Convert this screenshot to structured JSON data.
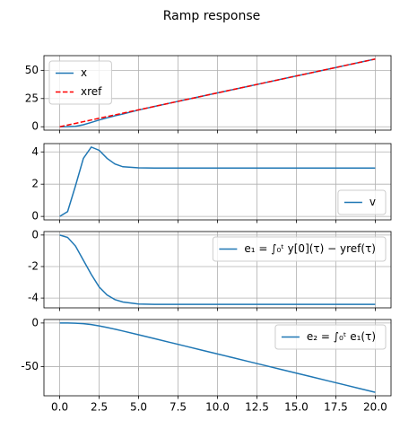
{
  "title": "Ramp response",
  "chart_data": [
    {
      "type": "line",
      "legend": "upper left",
      "grid": true,
      "ylim": [
        -3,
        63
      ],
      "yticks": [
        0,
        25,
        50
      ],
      "series": [
        {
          "name": "x",
          "color": "#1f77b4",
          "style": "solid",
          "x": [
            0,
            0.5,
            1,
            1.5,
            2,
            2.5,
            3,
            3.5,
            4,
            5,
            6,
            7,
            8,
            9,
            10,
            11,
            12,
            13,
            14,
            15,
            16,
            17,
            18,
            19,
            20
          ],
          "values": [
            0,
            0.05,
            0.4,
            1.8,
            3.8,
            6.0,
            7.9,
            9.7,
            11.3,
            14.85,
            18,
            21,
            24,
            27,
            30,
            33,
            36,
            39,
            42,
            45,
            48,
            51,
            54,
            57,
            60
          ]
        },
        {
          "name": "xref",
          "color": "#ff0000",
          "style": "dashed",
          "x": [
            0,
            0.5,
            1,
            1.5,
            2,
            2.5,
            3,
            3.5,
            4,
            5,
            6,
            7,
            8,
            9,
            10,
            11,
            12,
            13,
            14,
            15,
            16,
            17,
            18,
            19,
            20
          ],
          "values": [
            0,
            1.5,
            3,
            4.5,
            6,
            7.5,
            9,
            10.5,
            12,
            15,
            18,
            21,
            24,
            27,
            30,
            33,
            36,
            39,
            42,
            45,
            48,
            51,
            54,
            57,
            60
          ]
        }
      ]
    },
    {
      "type": "line",
      "legend": "lower right",
      "grid": true,
      "ylim": [
        -0.215,
        4.515
      ],
      "yticks": [
        0,
        2,
        4
      ],
      "series": [
        {
          "name": "v",
          "color": "#1f77b4",
          "style": "solid",
          "x": [
            0,
            0.5,
            1,
            1.5,
            2,
            2.5,
            3,
            3.5,
            4,
            5,
            6,
            7,
            8,
            9,
            10,
            11,
            12,
            13,
            14,
            15,
            16,
            17,
            18,
            19,
            20
          ],
          "values": [
            0,
            0.3,
            1.9,
            3.6,
            4.3,
            4.1,
            3.6,
            3.25,
            3.08,
            3.01,
            3,
            3,
            3,
            3,
            3,
            3,
            3,
            3,
            3,
            3,
            3,
            3,
            3,
            3,
            3
          ]
        }
      ]
    },
    {
      "type": "line",
      "legend": "upper right",
      "grid": true,
      "ylim": [
        -4.62,
        0.22
      ],
      "yticks": [
        -4,
        -2,
        0
      ],
      "series": [
        {
          "name": "e₁ = ∫₀ᵗ y[0](τ) − yref(τ)",
          "color": "#1f77b4",
          "style": "solid",
          "x": [
            0,
            0.5,
            1,
            1.5,
            2,
            2.5,
            3,
            3.5,
            4,
            5,
            6,
            7,
            8,
            9,
            10,
            11,
            12,
            13,
            14,
            15,
            16,
            17,
            18,
            19,
            20
          ],
          "values": [
            0,
            -0.15,
            -0.7,
            -1.6,
            -2.5,
            -3.3,
            -3.8,
            -4.1,
            -4.25,
            -4.38,
            -4.4,
            -4.4,
            -4.4,
            -4.4,
            -4.4,
            -4.4,
            -4.4,
            -4.4,
            -4.4,
            -4.4,
            -4.4,
            -4.4,
            -4.4,
            -4.4,
            -4.4
          ]
        }
      ]
    },
    {
      "type": "line",
      "legend": "upper right",
      "grid": true,
      "ylim": [
        -83.5,
        4
      ],
      "yticks": [
        -50,
        0
      ],
      "xlim": [
        -1,
        21
      ],
      "xticks": [
        {
          "value": 0,
          "label": "0.0"
        },
        2.5,
        {
          "value": 5,
          "label": "5.0"
        },
        7.5,
        {
          "value": 10,
          "label": "10.0"
        },
        12.5,
        {
          "value": 15,
          "label": "15.0"
        },
        17.5,
        {
          "value": 20,
          "label": "20.0"
        }
      ],
      "series": [
        {
          "name": "e₂ = ∫₀ᵗ e₁(τ)",
          "color": "#1f77b4",
          "style": "solid",
          "x": [
            0,
            0.5,
            1,
            1.5,
            2,
            2.5,
            3,
            3.5,
            4,
            5,
            6,
            7,
            8,
            9,
            10,
            11,
            12,
            13,
            14,
            15,
            16,
            17,
            18,
            19,
            20
          ],
          "values": [
            0,
            -0.02,
            -0.2,
            -0.8,
            -1.8,
            -3.3,
            -5.1,
            -7.1,
            -9.2,
            -13.5,
            -17.9,
            -22.3,
            -26.7,
            -31.1,
            -35.5,
            -39.9,
            -44.3,
            -48.7,
            -53.1,
            -57.5,
            -61.9,
            -66.3,
            -70.7,
            -75.1,
            -79.5
          ]
        }
      ]
    }
  ]
}
